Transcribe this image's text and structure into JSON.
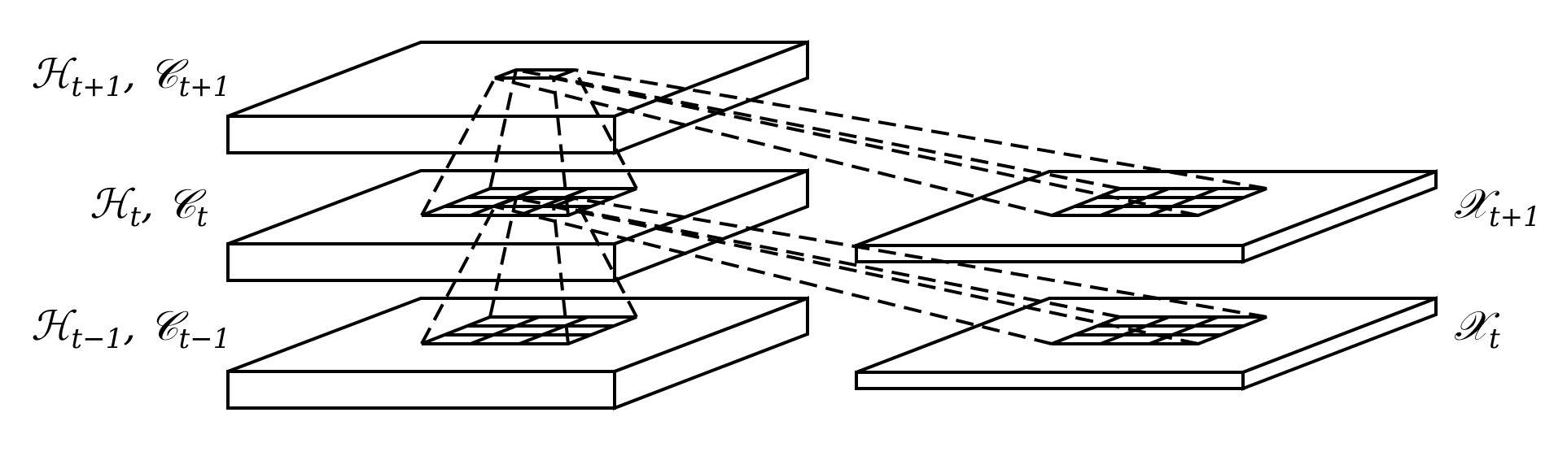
{
  "labels": {
    "h_next": {
      "H": "ℋ",
      "C": "𝒞",
      "sub1": "t+1",
      "sub2": "t+1"
    },
    "h_curr": {
      "H": "ℋ",
      "C": "𝒞",
      "sub1": "t",
      "sub2": "t"
    },
    "h_prev": {
      "H": "ℋ",
      "C": "𝒞",
      "sub1": "t−1",
      "sub2": "t−1"
    },
    "x_next": {
      "X": "𝒳",
      "sub": "t+1"
    },
    "x_curr": {
      "X": "𝒳",
      "sub": "t"
    }
  }
}
